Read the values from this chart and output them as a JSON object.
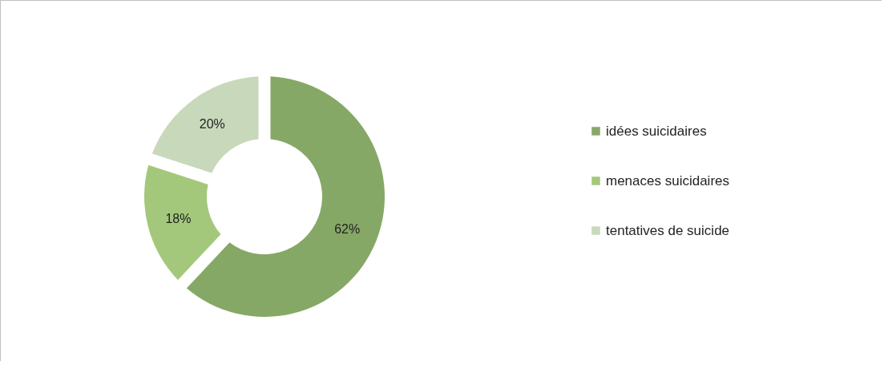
{
  "chart_data": {
    "type": "donut",
    "categories": [
      "idées suicidaires",
      "menaces suicidaires",
      "tentatives de suicide"
    ],
    "values": [
      62,
      18,
      20
    ],
    "colors": [
      "#86a866",
      "#a3c87b",
      "#c8d9bb"
    ],
    "value_labels": [
      "62%",
      "18%",
      "20%"
    ],
    "legend": "right"
  }
}
